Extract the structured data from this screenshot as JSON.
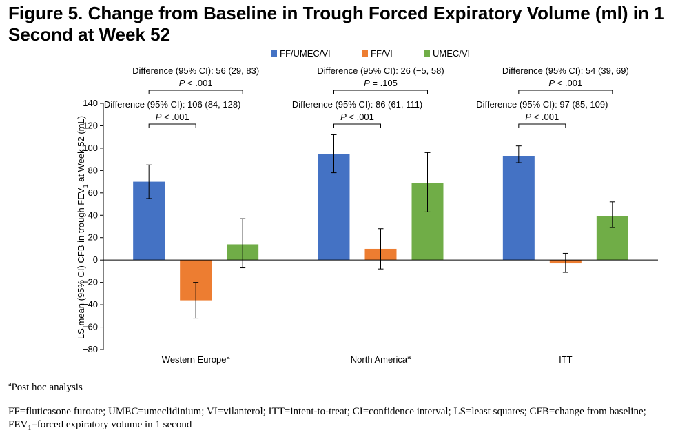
{
  "title": "Figure 5. Change from Baseline in Trough Forced Expiratory Volume (ml) in 1 Second at Week 52",
  "footnotes": {
    "post_hoc_marker": "a",
    "post_hoc": "Post hoc analysis",
    "abbrev_part1": "FF=fluticasone furoate; UMEC=umeclidinium; VI=vilanterol; ITT=intent-to-treat; CI=confidence interval; LS=least squares; CFB=change from baseline; FEV",
    "abbrev_sub": "1",
    "abbrev_part2": "=forced expiratory volume in 1 second"
  },
  "chart_data": {
    "type": "bar",
    "ylabel": "LS mean (95% CI) CFB in trough FEV",
    "ylabel_sub": "1",
    "ylabel_suffix": " at Week 52 (mL)",
    "ylim": [
      -80,
      140
    ],
    "yticks": [
      -80,
      -60,
      -40,
      -20,
      0,
      20,
      40,
      60,
      80,
      100,
      120,
      140
    ],
    "categories": [
      "Western Europe",
      "North America",
      "ITT"
    ],
    "category_superscripts": [
      "a",
      "a",
      ""
    ],
    "legend": "top",
    "grid": false,
    "colors": [
      "#4472c4",
      "#ed7d31",
      "#70ad47"
    ],
    "series": [
      {
        "name": "FF/UMEC/VI",
        "values": [
          70,
          95,
          93
        ],
        "ci_low": [
          55,
          78,
          87
        ],
        "ci_high": [
          85,
          112,
          102
        ]
      },
      {
        "name": "FF/VI",
        "values": [
          -36,
          10,
          -3
        ],
        "ci_low": [
          -52,
          -8,
          -11
        ],
        "ci_high": [
          -20,
          28,
          6
        ]
      },
      {
        "name": "UMEC/VI",
        "values": [
          14,
          69,
          39
        ],
        "ci_low": [
          -7,
          43,
          29
        ],
        "ci_high": [
          37,
          96,
          52
        ]
      }
    ],
    "comparisons": [
      {
        "group": 0,
        "from": 0,
        "to": 2,
        "text": "Difference (95% CI): 56 (29, 83)",
        "p_label": "P",
        "p_text": " < .001"
      },
      {
        "group": 0,
        "from": 0,
        "to": 1,
        "text": "Difference (95% CI): 106 (84, 128)",
        "p_label": "P",
        "p_text": " < .001"
      },
      {
        "group": 1,
        "from": 0,
        "to": 2,
        "text": "Difference (95% CI): 26 (−5, 58)",
        "p_label": "P",
        "p_text": " = .105"
      },
      {
        "group": 1,
        "from": 0,
        "to": 1,
        "text": "Difference (95% CI): 86 (61, 111)",
        "p_label": "P",
        "p_text": " < .001"
      },
      {
        "group": 2,
        "from": 0,
        "to": 2,
        "text": "Difference (95% CI): 54 (39, 69)",
        "p_label": "P",
        "p_text": " < .001"
      },
      {
        "group": 2,
        "from": 0,
        "to": 1,
        "text": "Difference (95% CI): 97 (85, 109)",
        "p_label": "P",
        "p_text": " < .001"
      }
    ]
  }
}
